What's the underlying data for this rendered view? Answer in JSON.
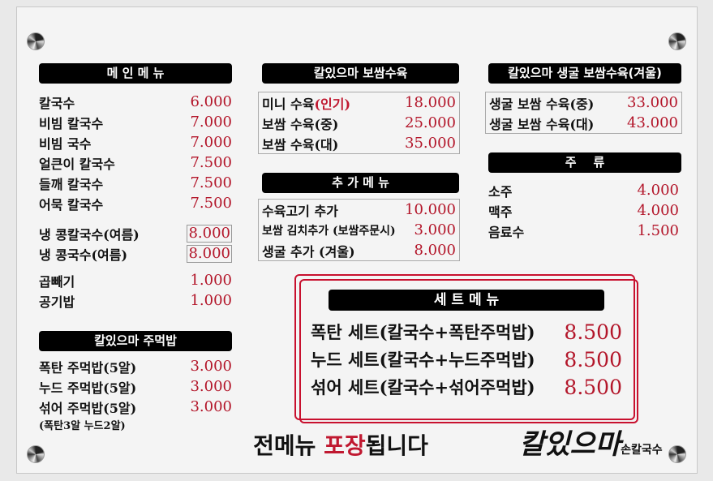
{
  "main_menu": {
    "title": "메 인 메 뉴",
    "items": [
      {
        "name": "칼국수",
        "price": "6.000"
      },
      {
        "name": "비빔 칼국수",
        "price": "7.000"
      },
      {
        "name": "비빔 국수",
        "price": "7.000"
      },
      {
        "name": "얼큰이 칼국수",
        "price": "7.500"
      },
      {
        "name": "들깨 칼국수",
        "price": "7.500"
      },
      {
        "name": "어묵 칼국수",
        "price": "7.500"
      }
    ],
    "summer": [
      {
        "name": "냉 콩칼국수(여름)",
        "price": "8.000"
      },
      {
        "name": "냉 콩국수(여름)",
        "price": "8.000"
      }
    ],
    "extras": [
      {
        "name": "곱빼기",
        "price": "1.000"
      },
      {
        "name": "공기밥",
        "price": "1.000"
      }
    ]
  },
  "rice_ball": {
    "title": "칼있으마 주먹밥",
    "items": [
      {
        "name": "폭탄 주먹밥(5알)",
        "price": "3.000"
      },
      {
        "name": "누드 주먹밥(5알)",
        "price": "3.000"
      },
      {
        "name": "섞어 주먹밥(5알)",
        "price": "3.000"
      }
    ],
    "note": "(폭탄3알 누드2알)"
  },
  "bossam": {
    "title": "칼있으마 보쌈수육",
    "items": [
      {
        "name": "미니 수육",
        "tag": "(인기)",
        "price": "18.000"
      },
      {
        "name": "보쌈 수육(중)",
        "price": "25.000"
      },
      {
        "name": "보쌈 수육(대)",
        "price": "35.000"
      }
    ]
  },
  "add_menu": {
    "title": "추 가 메 뉴",
    "items": [
      {
        "name": "수육고기 추가",
        "price": "10.000"
      },
      {
        "name": "보쌈 김치추가 (보쌈주문시)",
        "price": "3.000"
      },
      {
        "name": "생굴 추가 (겨울)",
        "price": "8.000"
      }
    ]
  },
  "oyster": {
    "title": "칼있으마 생굴 보쌈수육(겨울)",
    "items": [
      {
        "name": "생굴 보쌈 수육(중)",
        "price": "33.000"
      },
      {
        "name": "생굴 보쌈 수육(대)",
        "price": "43.000"
      }
    ]
  },
  "drinks": {
    "title": "주    류",
    "items": [
      {
        "name": "소주",
        "price": "4.000"
      },
      {
        "name": "맥주",
        "price": "4.000"
      },
      {
        "name": "음료수",
        "price": "1.500"
      }
    ]
  },
  "set_menu": {
    "title": "세 트 메 뉴",
    "items": [
      {
        "name": "폭탄 세트(칼국수+폭탄주먹밥)",
        "price": "8.500"
      },
      {
        "name": "누드 세트(칼국수+누드주먹밥)",
        "price": "8.500"
      },
      {
        "name": "섞어 세트(칼국수+섞어주먹밥)",
        "price": "8.500"
      }
    ]
  },
  "footer": {
    "text_a": "전메뉴 ",
    "text_b": "포장",
    "text_c": "됩니다"
  },
  "logo": {
    "main": "칼있으마",
    "sub": "손칼국수"
  },
  "colors": {
    "price": "#b3162a",
    "header_bg": "#000000",
    "set_border": "#c8102e"
  }
}
